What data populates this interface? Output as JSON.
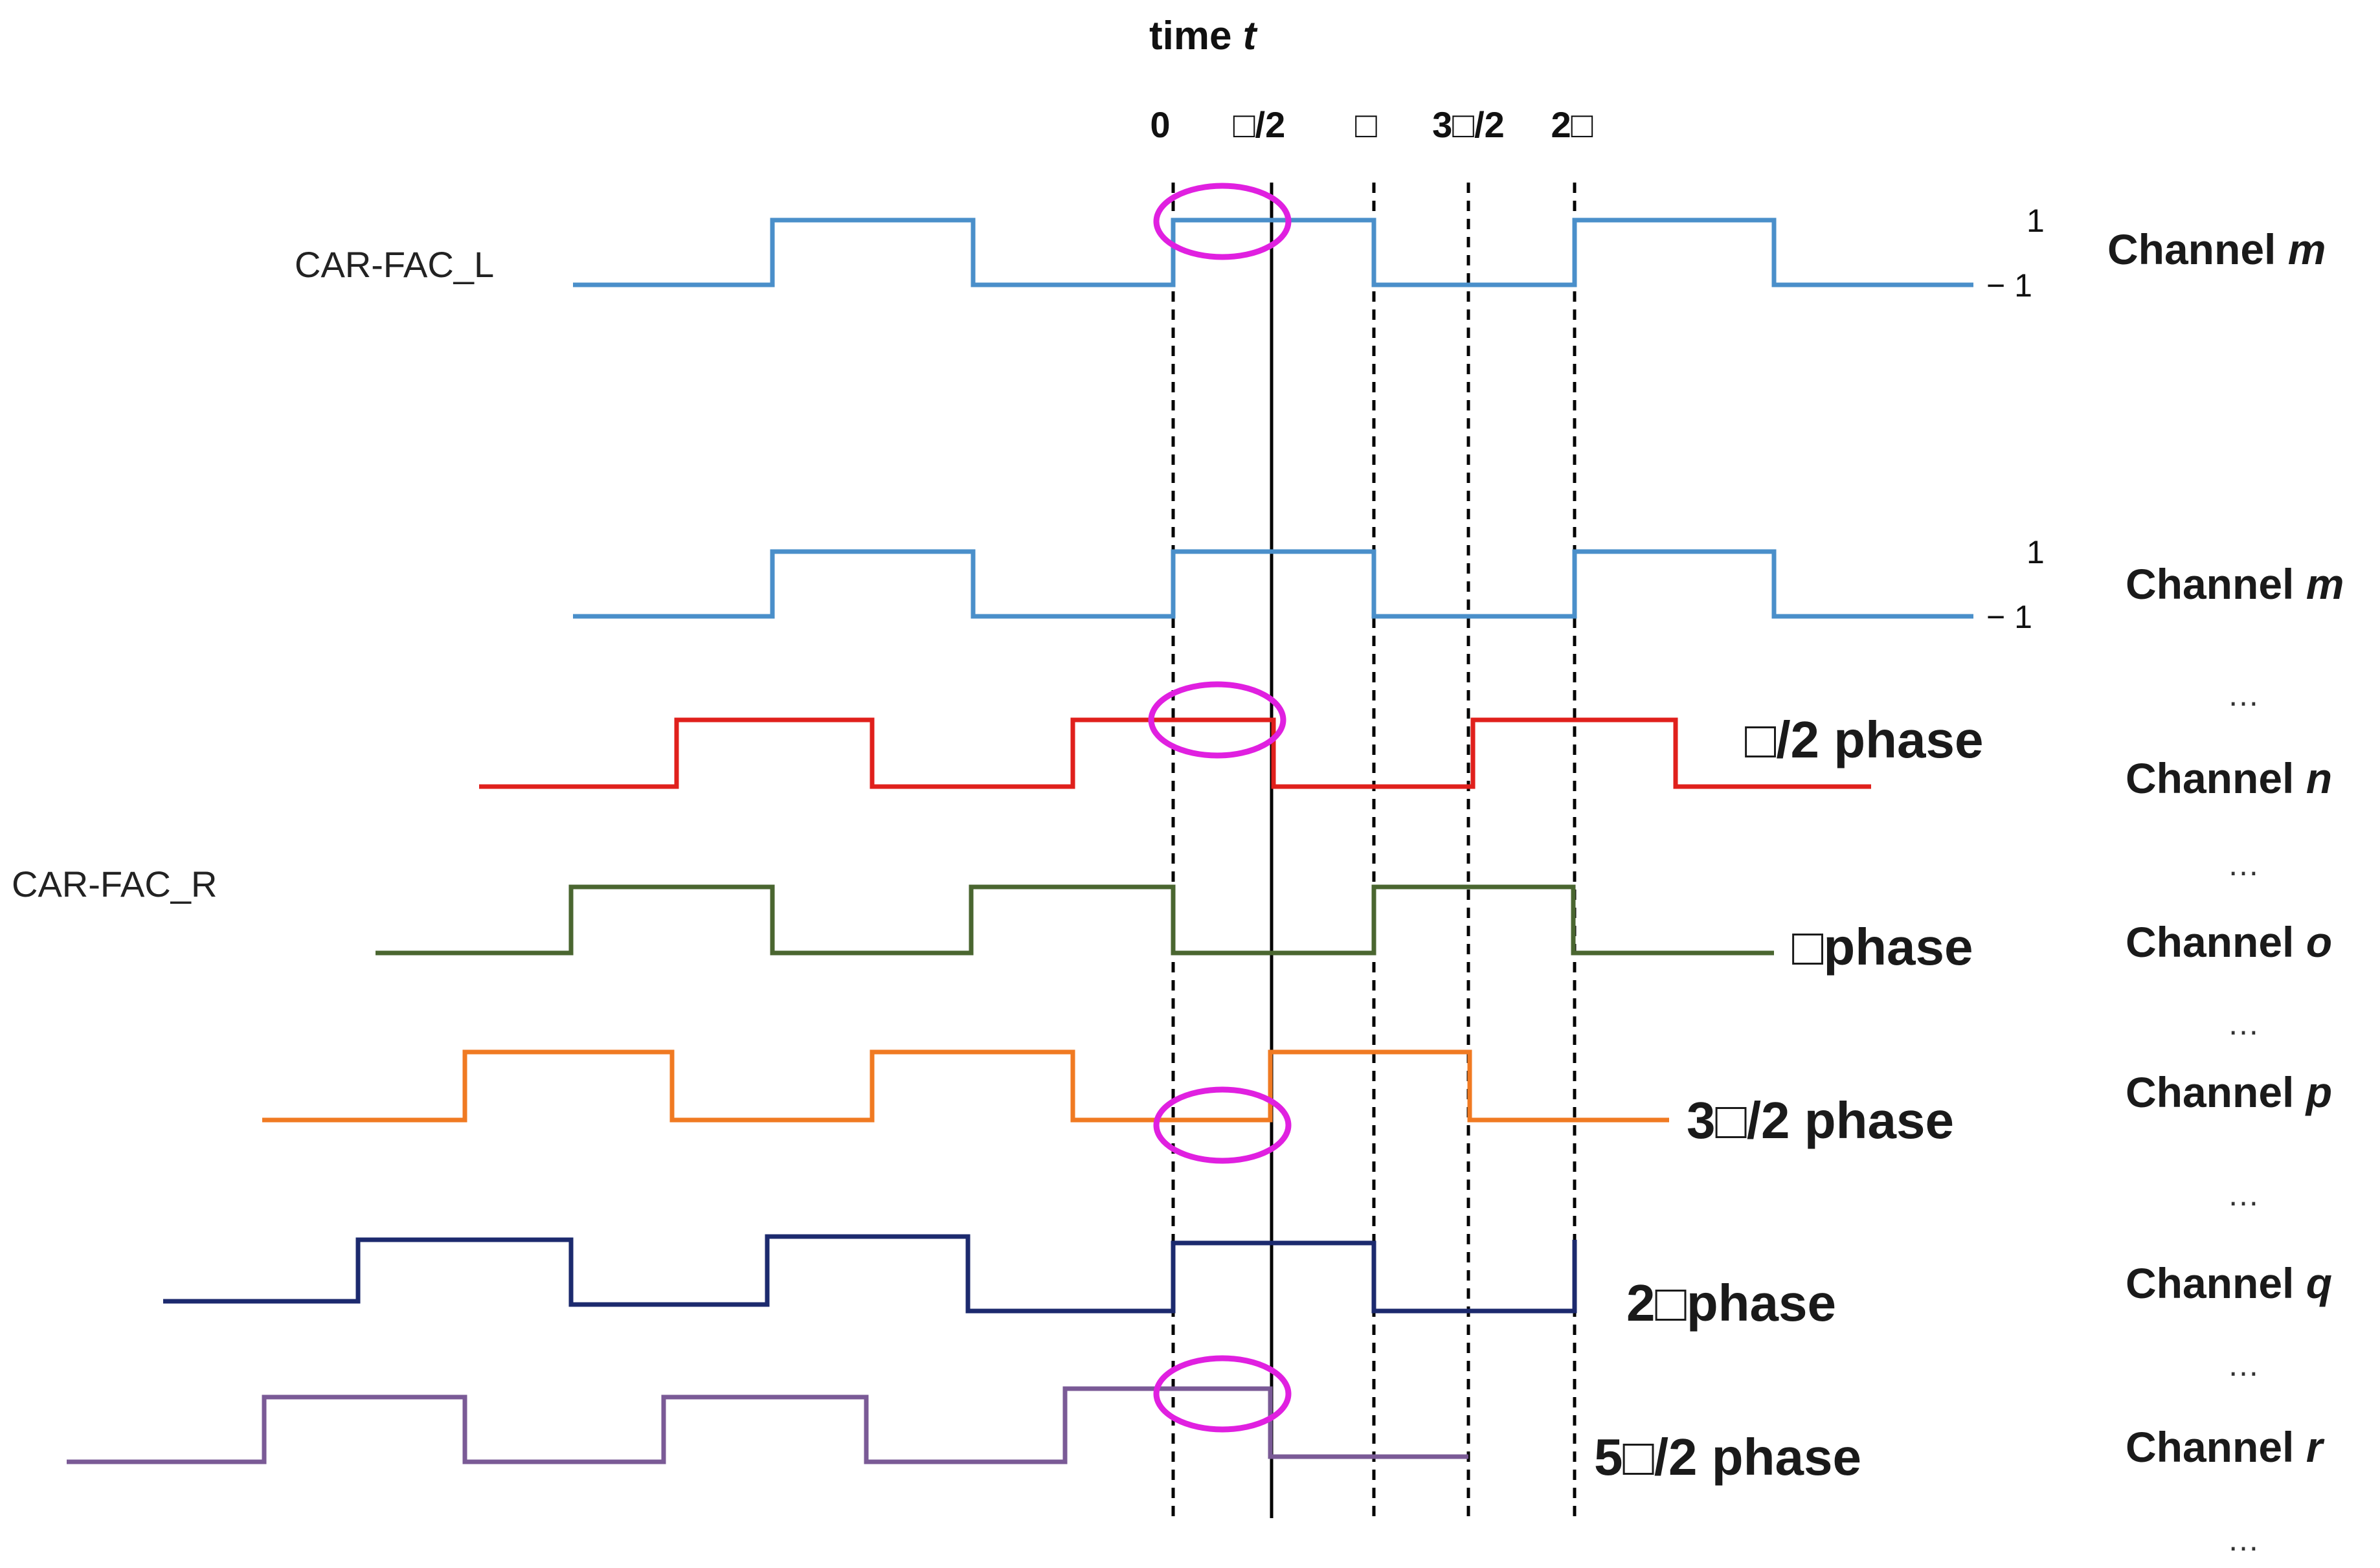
{
  "title": {
    "prefix": "time ",
    "var": "t"
  },
  "ticks": [
    "0",
    "□/2",
    "□",
    "3□/2",
    "2□"
  ],
  "groups": {
    "left": "CAR-FAC_L",
    "right": "CAR-FAC_R"
  },
  "levels": {
    "high": "1",
    "low": "− 1"
  },
  "channels": [
    {
      "word": "Channel",
      "var": "m"
    },
    {
      "word": "Channel",
      "var": "m"
    },
    {
      "word": "Channel",
      "var": "n"
    },
    {
      "word": "Channel",
      "var": "o"
    },
    {
      "word": "Channel",
      "var": "p"
    },
    {
      "word": "Channel",
      "var": "q"
    },
    {
      "word": "Channel",
      "var": "r"
    }
  ],
  "phases": [
    "□/2 phase",
    "□phase",
    "3□/2 phase",
    "2□phase",
    "5□/2 phase"
  ],
  "ellipsis": "…",
  "colors": {
    "blue": "#4a8fca",
    "red": "#e0201c",
    "green": "#4a6630",
    "orange": "#f07a22",
    "navy": "#1c2a6e",
    "purple": "#7a5a96",
    "magenta": "#e020e0"
  }
}
